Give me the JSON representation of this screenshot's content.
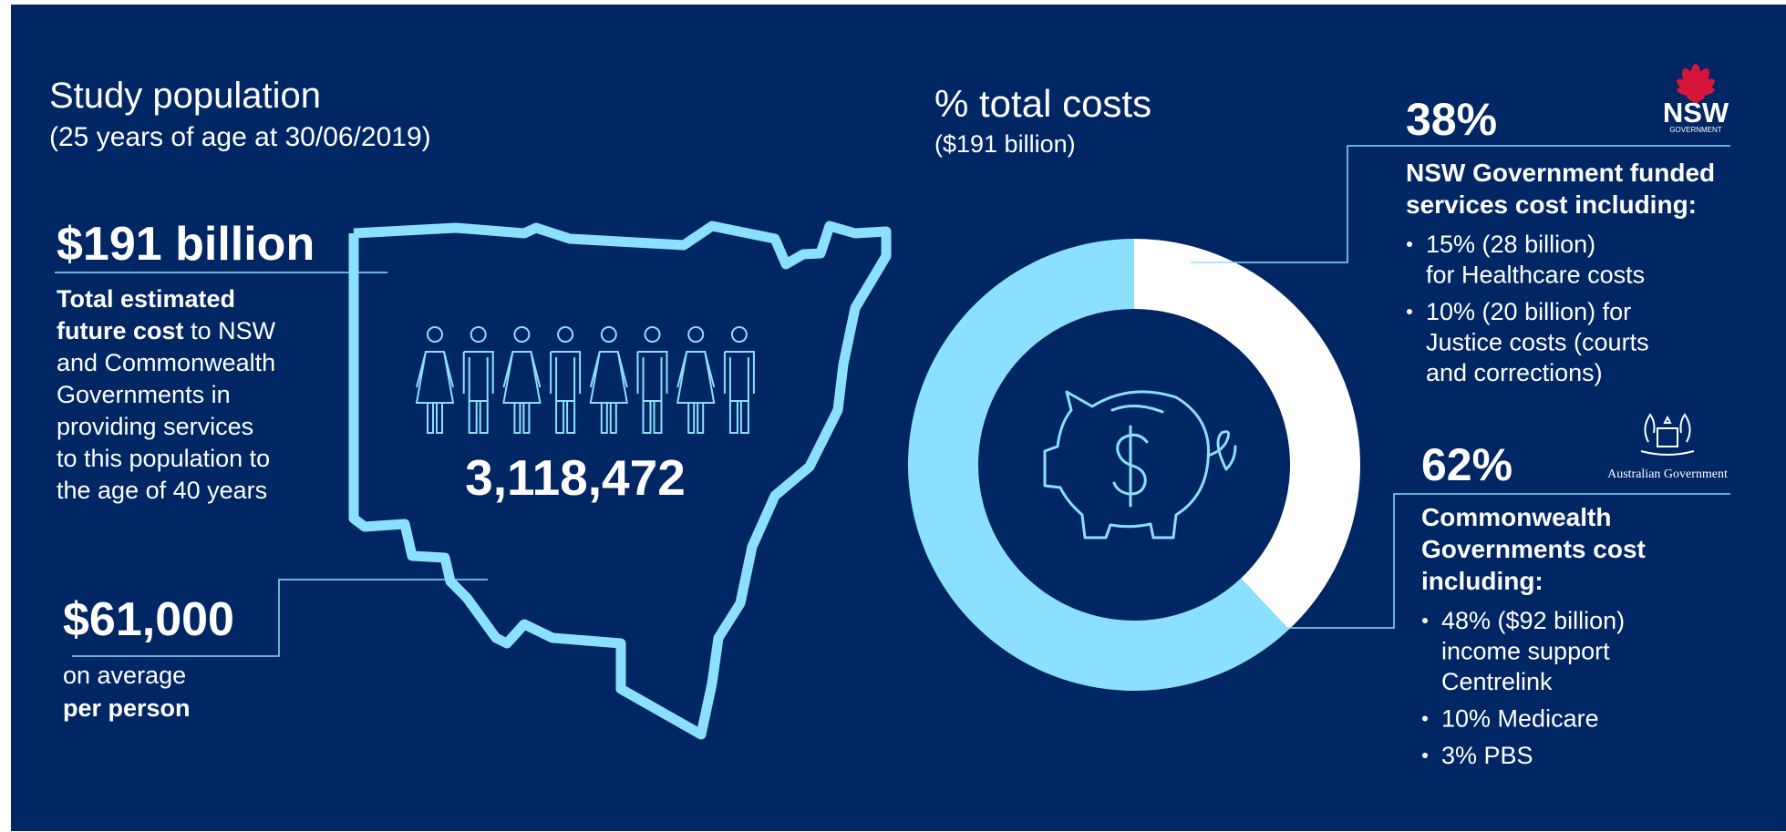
{
  "left": {
    "title": "Study population",
    "subtitle": "(25 years of age at 30/06/2019)",
    "total": "$191 billion",
    "total_text": [
      [
        {
          "text": "Total estimated",
          "bold": true
        }
      ],
      [
        {
          "text": "future cost",
          "bold": true
        },
        {
          "text": "to NSW",
          "bold": false
        }
      ],
      [
        {
          "text": "and Commonwealth",
          "bold": false
        }
      ],
      [
        {
          "text": "Governments in",
          "bold": false
        }
      ],
      [
        {
          "text": "providing services",
          "bold": false
        }
      ],
      [
        {
          "text": "to this population to",
          "bold": false
        }
      ],
      [
        {
          "text": "the age of 40 years",
          "bold": false
        }
      ]
    ],
    "average": "$61,000",
    "average_text": [
      [
        {
          "text": "on average",
          "bold": false
        }
      ],
      [
        {
          "text": "per person",
          "bold": true
        }
      ]
    ],
    "population": "3,118,472"
  },
  "chart_data": {
    "type": "pie",
    "title": "% total costs",
    "subtitle": "($191 billion)",
    "values": [
      38,
      62
    ],
    "value_labels": [
      "38%",
      "62%"
    ],
    "colors": [
      "#ffffff",
      "#8ce0ff"
    ],
    "donut": true
  },
  "panels": [
    {
      "heading": [
        "NSW Government funded",
        "services cost including:"
      ],
      "bullets": [
        [
          "15% (28 billion)",
          "for Healthcare costs"
        ],
        [
          "10% (20 billion) for",
          "Justice costs (courts",
          "and corrections)"
        ]
      ]
    },
    {
      "heading": [
        "Commonwealth",
        "Governments cost",
        "including:"
      ],
      "bullets": [
        [
          "48% ($92 billion)",
          "income support",
          "Centrelink"
        ],
        [
          "10% Medicare"
        ],
        [
          "3% PBS"
        ]
      ]
    }
  ],
  "logos": {
    "nsw": "NSW",
    "nsw_sub": "GOVERNMENT",
    "australian": "Australian Government"
  }
}
